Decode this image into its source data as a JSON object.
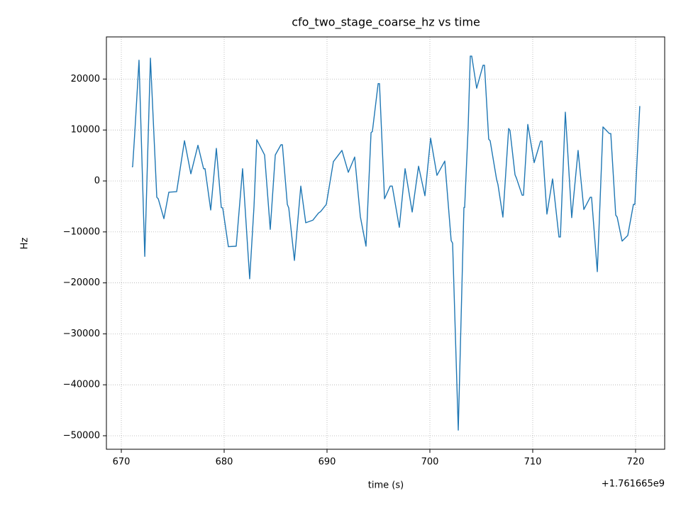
{
  "chart_data": {
    "type": "line",
    "title": "cfo_two_stage_coarse_hz vs time",
    "x_label": "time (s)",
    "y_label": "Hz",
    "x_offset_label": "+1.761665e9",
    "grid": true,
    "xlim": [
      668.55,
      722.83
    ],
    "ylim": [
      -52650,
      28270
    ],
    "xticks": [
      670,
      680,
      690,
      700,
      710,
      720
    ],
    "yticks": [
      {
        "value": -50000,
        "label": "−50000"
      },
      {
        "value": -40000,
        "label": "−40000"
      },
      {
        "value": -30000,
        "label": "−30000"
      },
      {
        "value": -20000,
        "label": "−20000"
      },
      {
        "value": -10000,
        "label": "−10000"
      },
      0,
      10000,
      20000
    ],
    "x": [
      671.03,
      671.1,
      671.31,
      671.72,
      672.28,
      672.83,
      673.45,
      673.59,
      674.14,
      674.62,
      675.38,
      676.14,
      676.76,
      677.45,
      678.0,
      678.14,
      678.69,
      679.24,
      679.72,
      679.86,
      680.41,
      681.17,
      681.79,
      682.48,
      682.9,
      683.17,
      683.93,
      684.48,
      684.97,
      685.52,
      685.66,
      686.14,
      686.28,
      686.83,
      687.45,
      687.93,
      688.62,
      689.17,
      689.38,
      689.93,
      690.62,
      691.45,
      692.07,
      692.69,
      693.24,
      693.79,
      694.28,
      694.41,
      694.97,
      695.1,
      695.59,
      696.14,
      696.34,
      697.03,
      697.59,
      698.28,
      698.9,
      699.52,
      700.07,
      700.69,
      701.45,
      702.07,
      702.21,
      702.76,
      703.31,
      703.38,
      703.72,
      703.93,
      704.07,
      704.55,
      705.17,
      705.31,
      705.72,
      705.86,
      706.48,
      706.62,
      707.1,
      707.66,
      707.79,
      708.28,
      708.41,
      708.97,
      709.1,
      709.52,
      710.14,
      710.76,
      710.9,
      711.38,
      711.93,
      712.55,
      712.69,
      713.17,
      713.79,
      714.41,
      714.97,
      715.59,
      715.72,
      716.28,
      716.83,
      717.45,
      717.59,
      718.07,
      718.21,
      718.69,
      719.24,
      719.79,
      719.93,
      720.41
    ],
    "series": [
      {
        "color": "#1f77b4",
        "values": [
          2800,
          2800,
          9500,
          23700,
          -14800,
          24100,
          -3200,
          -3500,
          -7400,
          -2200,
          -2100,
          7900,
          1400,
          7000,
          2400,
          2400,
          -5700,
          6400,
          -5200,
          -5300,
          -12900,
          -12800,
          2400,
          -19200,
          -5000,
          8100,
          5100,
          -9500,
          5100,
          7100,
          7100,
          -4600,
          -5300,
          -15600,
          -1000,
          -8200,
          -7700,
          -6300,
          -6000,
          -4600,
          3800,
          6000,
          1700,
          4700,
          -7000,
          -12800,
          9500,
          9700,
          19100,
          19100,
          -3500,
          -1000,
          -1000,
          -9100,
          2400,
          -6100,
          2900,
          -2900,
          8400,
          1100,
          3900,
          -11700,
          -12200,
          -48900,
          -5200,
          -5200,
          10400,
          24500,
          24500,
          18200,
          22700,
          22700,
          8200,
          7900,
          400,
          -700,
          -7100,
          10300,
          9900,
          1200,
          600,
          -2800,
          -2800,
          11100,
          3600,
          7800,
          7800,
          -6500,
          400,
          -11000,
          -11000,
          13500,
          -7200,
          6000,
          -5600,
          -3200,
          -3200,
          -17800,
          10600,
          9300,
          9300,
          -6700,
          -7100,
          -11800,
          -10700,
          -4600,
          -4600,
          14700
        ]
      }
    ]
  }
}
